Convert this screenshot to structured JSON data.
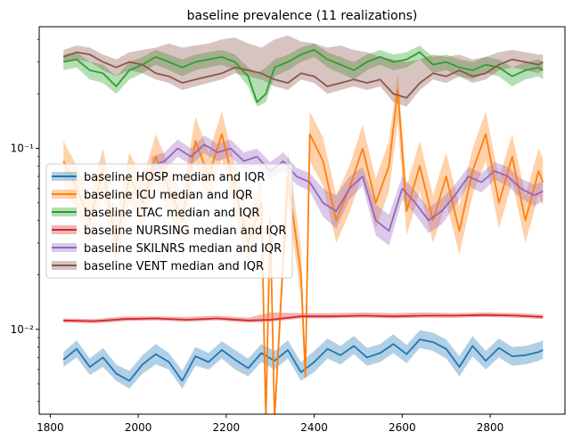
{
  "chart_data": {
    "type": "line",
    "title": "baseline prevalence (11 realizations)",
    "xlabel": "",
    "ylabel": "",
    "yscale": "log",
    "xlim": [
      1775,
      2970
    ],
    "ylim": [
      0.0034,
      0.47
    ],
    "x_ticks": [
      1800,
      2000,
      2200,
      2400,
      2600,
      2800
    ],
    "x_tick_labels": [
      "1800",
      "2000",
      "2200",
      "2400",
      "2600",
      "2800"
    ],
    "y_ticks": [
      0.01,
      0.1
    ],
    "y_tick_labels": [
      "10⁻²",
      "10⁻¹"
    ],
    "grid": false,
    "legend": "center-left",
    "series": [
      {
        "name": "baseline HOSP median and IQR",
        "color": "#1f77b4",
        "x": [
          1830,
          1860,
          1890,
          1920,
          1950,
          1980,
          2010,
          2040,
          2070,
          2100,
          2130,
          2160,
          2190,
          2220,
          2250,
          2280,
          2310,
          2340,
          2370,
          2400,
          2430,
          2460,
          2490,
          2520,
          2550,
          2580,
          2610,
          2640,
          2670,
          2700,
          2730,
          2760,
          2790,
          2820,
          2850,
          2880,
          2910,
          2920
        ],
        "median": [
          0.0068,
          0.0078,
          0.0062,
          0.007,
          0.0057,
          0.0052,
          0.0064,
          0.0073,
          0.0066,
          0.0052,
          0.0071,
          0.0066,
          0.0077,
          0.0068,
          0.0061,
          0.0074,
          0.0067,
          0.0077,
          0.0058,
          0.0066,
          0.0078,
          0.0072,
          0.0081,
          0.007,
          0.0074,
          0.0083,
          0.0073,
          0.0088,
          0.0085,
          0.0078,
          0.0062,
          0.0081,
          0.0067,
          0.0079,
          0.0071,
          0.0072,
          0.0075,
          0.0077
        ],
        "q1": [
          0.0062,
          0.007,
          0.0056,
          0.0062,
          0.0052,
          0.0047,
          0.0057,
          0.0064,
          0.006,
          0.0047,
          0.0063,
          0.006,
          0.0069,
          0.006,
          0.0055,
          0.0066,
          0.006,
          0.0069,
          0.0052,
          0.0058,
          0.0069,
          0.0064,
          0.0073,
          0.0063,
          0.0066,
          0.0074,
          0.0065,
          0.0079,
          0.0076,
          0.0069,
          0.0055,
          0.0071,
          0.006,
          0.007,
          0.0063,
          0.0064,
          0.0067,
          0.0069
        ],
        "q3": [
          0.0075,
          0.0087,
          0.0069,
          0.0079,
          0.0064,
          0.0059,
          0.0072,
          0.0083,
          0.0074,
          0.0059,
          0.008,
          0.0074,
          0.0086,
          0.0077,
          0.0069,
          0.0083,
          0.0076,
          0.0087,
          0.0066,
          0.0076,
          0.0089,
          0.0081,
          0.0092,
          0.0079,
          0.0083,
          0.0094,
          0.0082,
          0.0099,
          0.0096,
          0.0088,
          0.0071,
          0.0092,
          0.0076,
          0.0089,
          0.008,
          0.0081,
          0.0085,
          0.0087
        ]
      },
      {
        "name": "baseline ICU median and IQR",
        "color": "#ff7f0e",
        "x": [
          1830,
          1860,
          1890,
          1920,
          1950,
          1980,
          2010,
          2040,
          2070,
          2100,
          2130,
          2160,
          2190,
          2220,
          2250,
          2280,
          2290,
          2300,
          2310,
          2340,
          2370,
          2380,
          2390,
          2420,
          2450,
          2480,
          2510,
          2540,
          2570,
          2590,
          2610,
          2640,
          2670,
          2700,
          2730,
          2760,
          2790,
          2820,
          2850,
          2880,
          2910,
          2920
        ],
        "median": [
          0.085,
          0.06,
          0.04,
          0.075,
          0.03,
          0.07,
          0.05,
          0.09,
          0.06,
          0.04,
          0.11,
          0.07,
          0.12,
          0.06,
          0.03,
          0.05,
          0.0032,
          0.04,
          0.0032,
          0.07,
          0.02,
          0.0055,
          0.12,
          0.085,
          0.04,
          0.06,
          0.1,
          0.05,
          0.08,
          0.21,
          0.045,
          0.08,
          0.04,
          0.07,
          0.035,
          0.075,
          0.12,
          0.05,
          0.09,
          0.04,
          0.075,
          0.065
        ],
        "q1": [
          0.062,
          0.045,
          0.03,
          0.055,
          0.022,
          0.05,
          0.037,
          0.065,
          0.044,
          0.03,
          0.08,
          0.05,
          0.088,
          0.044,
          0.022,
          0.036,
          0.0034,
          0.029,
          0.0034,
          0.05,
          0.015,
          0.005,
          0.085,
          0.062,
          0.03,
          0.044,
          0.072,
          0.036,
          0.058,
          0.14,
          0.033,
          0.058,
          0.03,
          0.05,
          0.026,
          0.055,
          0.085,
          0.036,
          0.065,
          0.03,
          0.055,
          0.048
        ],
        "q3": [
          0.11,
          0.08,
          0.055,
          0.1,
          0.042,
          0.095,
          0.068,
          0.12,
          0.08,
          0.055,
          0.15,
          0.095,
          0.16,
          0.08,
          0.042,
          0.068,
          0.004,
          0.055,
          0.004,
          0.095,
          0.028,
          0.007,
          0.16,
          0.115,
          0.055,
          0.08,
          0.135,
          0.068,
          0.11,
          0.26,
          0.062,
          0.11,
          0.055,
          0.095,
          0.048,
          0.1,
          0.16,
          0.068,
          0.12,
          0.055,
          0.1,
          0.088
        ]
      },
      {
        "name": "baseline LTAC median and IQR",
        "color": "#2ca02c",
        "x": [
          1830,
          1860,
          1890,
          1920,
          1950,
          1980,
          2010,
          2040,
          2070,
          2100,
          2130,
          2160,
          2190,
          2220,
          2250,
          2270,
          2290,
          2310,
          2340,
          2370,
          2400,
          2430,
          2460,
          2490,
          2520,
          2550,
          2580,
          2610,
          2640,
          2670,
          2700,
          2730,
          2760,
          2790,
          2820,
          2850,
          2880,
          2910,
          2920
        ],
        "median": [
          0.3,
          0.31,
          0.27,
          0.26,
          0.22,
          0.27,
          0.29,
          0.32,
          0.3,
          0.28,
          0.3,
          0.31,
          0.32,
          0.3,
          0.25,
          0.18,
          0.2,
          0.28,
          0.3,
          0.33,
          0.35,
          0.31,
          0.29,
          0.27,
          0.3,
          0.32,
          0.3,
          0.31,
          0.34,
          0.29,
          0.3,
          0.28,
          0.27,
          0.29,
          0.28,
          0.25,
          0.27,
          0.28,
          0.27
        ],
        "q1": [
          0.27,
          0.28,
          0.24,
          0.23,
          0.2,
          0.24,
          0.26,
          0.29,
          0.27,
          0.25,
          0.27,
          0.28,
          0.29,
          0.27,
          0.22,
          0.17,
          0.18,
          0.25,
          0.27,
          0.3,
          0.32,
          0.28,
          0.26,
          0.24,
          0.27,
          0.29,
          0.27,
          0.28,
          0.31,
          0.26,
          0.27,
          0.25,
          0.24,
          0.26,
          0.25,
          0.22,
          0.24,
          0.25,
          0.24
        ],
        "q3": [
          0.33,
          0.34,
          0.3,
          0.29,
          0.25,
          0.3,
          0.32,
          0.35,
          0.33,
          0.31,
          0.33,
          0.34,
          0.35,
          0.33,
          0.28,
          0.26,
          0.28,
          0.31,
          0.33,
          0.36,
          0.38,
          0.34,
          0.32,
          0.3,
          0.33,
          0.35,
          0.33,
          0.34,
          0.37,
          0.32,
          0.33,
          0.31,
          0.3,
          0.32,
          0.31,
          0.28,
          0.3,
          0.31,
          0.3
        ]
      },
      {
        "name": "baseline NURSING median and IQR",
        "color": "#d62728",
        "x": [
          1830,
          1900,
          1970,
          2040,
          2110,
          2180,
          2250,
          2300,
          2370,
          2440,
          2510,
          2580,
          2650,
          2720,
          2790,
          2860,
          2920
        ],
        "median": [
          0.0112,
          0.0111,
          0.0114,
          0.0115,
          0.0113,
          0.0115,
          0.0112,
          0.0113,
          0.0118,
          0.0118,
          0.0119,
          0.0118,
          0.0119,
          0.0119,
          0.012,
          0.0119,
          0.0117
        ],
        "q1": [
          0.0109,
          0.0108,
          0.0111,
          0.0112,
          0.011,
          0.0112,
          0.0109,
          0.011,
          0.0115,
          0.0115,
          0.0116,
          0.0115,
          0.0116,
          0.0116,
          0.0117,
          0.0116,
          0.0114
        ],
        "q3": [
          0.0115,
          0.0114,
          0.0118,
          0.0118,
          0.0117,
          0.0119,
          0.0116,
          0.0124,
          0.0123,
          0.0123,
          0.0124,
          0.0123,
          0.0124,
          0.0123,
          0.0124,
          0.0123,
          0.0121
        ]
      },
      {
        "name": "baseline SKILNRS median and IQR",
        "color": "#9467bd",
        "x": [
          2030,
          2060,
          2090,
          2120,
          2150,
          2180,
          2210,
          2240,
          2270,
          2300,
          2330,
          2360,
          2390,
          2420,
          2450,
          2480,
          2510,
          2540,
          2570,
          2600,
          2630,
          2660,
          2690,
          2720,
          2750,
          2780,
          2810,
          2840,
          2870,
          2900,
          2920
        ],
        "median": [
          0.08,
          0.085,
          0.1,
          0.09,
          0.105,
          0.095,
          0.1,
          0.085,
          0.09,
          0.075,
          0.085,
          0.07,
          0.065,
          0.05,
          0.045,
          0.06,
          0.07,
          0.04,
          0.035,
          0.06,
          0.05,
          0.04,
          0.045,
          0.055,
          0.07,
          0.065,
          0.075,
          0.07,
          0.06,
          0.055,
          0.058
        ],
        "q1": [
          0.072,
          0.076,
          0.09,
          0.081,
          0.094,
          0.085,
          0.09,
          0.076,
          0.081,
          0.067,
          0.076,
          0.063,
          0.058,
          0.042,
          0.036,
          0.052,
          0.062,
          0.033,
          0.029,
          0.052,
          0.043,
          0.034,
          0.038,
          0.048,
          0.062,
          0.057,
          0.067,
          0.062,
          0.053,
          0.048,
          0.051
        ],
        "q3": [
          0.09,
          0.095,
          0.112,
          0.1,
          0.118,
          0.106,
          0.112,
          0.095,
          0.1,
          0.084,
          0.095,
          0.078,
          0.073,
          0.06,
          0.055,
          0.07,
          0.079,
          0.049,
          0.043,
          0.07,
          0.058,
          0.047,
          0.053,
          0.063,
          0.079,
          0.073,
          0.084,
          0.079,
          0.068,
          0.063,
          0.066
        ]
      },
      {
        "name": "baseline VENT median and IQR",
        "color": "#8c564b",
        "x": [
          1830,
          1860,
          1890,
          1920,
          1950,
          1980,
          2010,
          2040,
          2070,
          2100,
          2130,
          2160,
          2190,
          2220,
          2250,
          2280,
          2310,
          2340,
          2370,
          2400,
          2430,
          2460,
          2490,
          2520,
          2550,
          2580,
          2610,
          2640,
          2670,
          2700,
          2730,
          2760,
          2790,
          2820,
          2850,
          2880,
          2910,
          2920
        ],
        "median": [
          0.32,
          0.34,
          0.33,
          0.3,
          0.28,
          0.3,
          0.29,
          0.26,
          0.25,
          0.23,
          0.24,
          0.25,
          0.26,
          0.28,
          0.27,
          0.26,
          0.24,
          0.23,
          0.26,
          0.25,
          0.22,
          0.23,
          0.24,
          0.23,
          0.24,
          0.2,
          0.19,
          0.23,
          0.26,
          0.25,
          0.27,
          0.25,
          0.26,
          0.29,
          0.31,
          0.3,
          0.29,
          0.3
        ],
        "q1": [
          0.3,
          0.31,
          0.3,
          0.27,
          0.25,
          0.27,
          0.26,
          0.24,
          0.23,
          0.21,
          0.22,
          0.23,
          0.24,
          0.26,
          0.25,
          0.24,
          0.22,
          0.21,
          0.24,
          0.23,
          0.2,
          0.21,
          0.22,
          0.21,
          0.22,
          0.18,
          0.17,
          0.21,
          0.24,
          0.23,
          0.25,
          0.23,
          0.24,
          0.27,
          0.28,
          0.27,
          0.26,
          0.27
        ],
        "q3": [
          0.35,
          0.37,
          0.36,
          0.33,
          0.31,
          0.34,
          0.35,
          0.36,
          0.38,
          0.36,
          0.37,
          0.38,
          0.4,
          0.41,
          0.38,
          0.36,
          0.4,
          0.42,
          0.39,
          0.38,
          0.36,
          0.37,
          0.35,
          0.34,
          0.32,
          0.31,
          0.3,
          0.31,
          0.33,
          0.32,
          0.33,
          0.31,
          0.32,
          0.34,
          0.35,
          0.34,
          0.33,
          0.33
        ]
      }
    ]
  }
}
